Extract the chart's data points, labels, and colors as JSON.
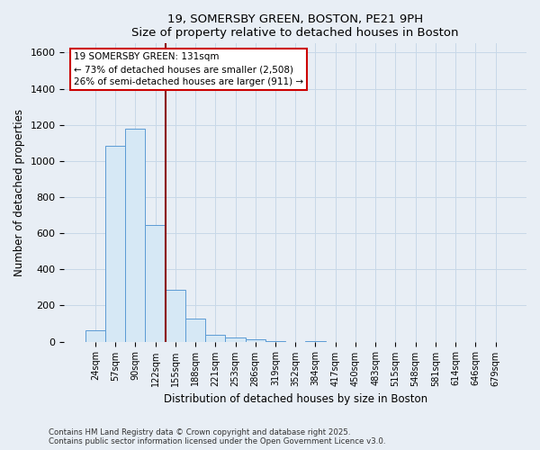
{
  "title": "19, SOMERSBY GREEN, BOSTON, PE21 9PH",
  "subtitle": "Size of property relative to detached houses in Boston",
  "xlabel": "Distribution of detached houses by size in Boston",
  "ylabel": "Number of detached properties",
  "bin_labels": [
    "24sqm",
    "57sqm",
    "90sqm",
    "122sqm",
    "155sqm",
    "188sqm",
    "221sqm",
    "253sqm",
    "286sqm",
    "319sqm",
    "352sqm",
    "384sqm",
    "417sqm",
    "450sqm",
    "483sqm",
    "515sqm",
    "548sqm",
    "581sqm",
    "614sqm",
    "646sqm",
    "679sqm"
  ],
  "bin_values": [
    65,
    1085,
    1180,
    645,
    285,
    125,
    40,
    25,
    15,
    2,
    0,
    1,
    0,
    0,
    0,
    0,
    0,
    0,
    0,
    0,
    0
  ],
  "bar_color": "#d6e8f5",
  "bar_edge_color": "#5b9bd5",
  "grid_color": "#c8d8e8",
  "background_color": "#e8eef5",
  "plot_bg_color": "#e8eef5",
  "vline_x_index": 3,
  "vline_color": "#8b0000",
  "annotation_title": "19 SOMERSBY GREEN: 131sqm",
  "annotation_line1": "← 73% of detached houses are smaller (2,508)",
  "annotation_line2": "26% of semi-detached houses are larger (911) →",
  "annotation_box_color": "#ffffff",
  "annotation_box_edge": "#cc0000",
  "ylim": [
    0,
    1650
  ],
  "yticks": [
    0,
    200,
    400,
    600,
    800,
    1000,
    1200,
    1400,
    1600
  ],
  "footnote1": "Contains HM Land Registry data © Crown copyright and database right 2025.",
  "footnote2": "Contains public sector information licensed under the Open Government Licence v3.0."
}
